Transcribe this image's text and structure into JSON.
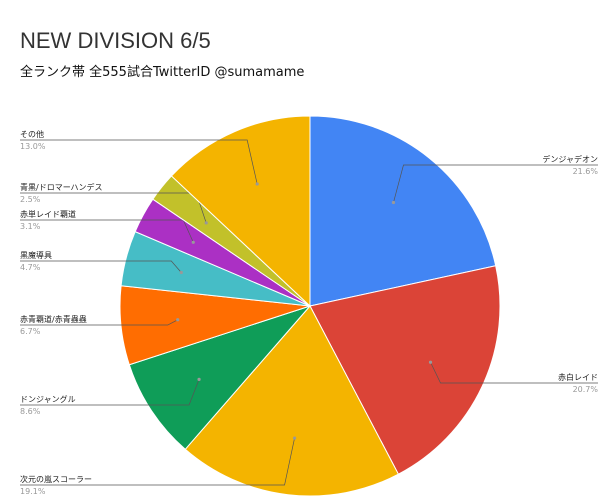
{
  "chart_data": {
    "type": "pie",
    "title": "NEW DIVISION 6/5",
    "subtitle": "全ランク帯 全555試合TwitterID @sumamame",
    "categories": [
      "デンジャデオン",
      "赤白レイド",
      "次元の嵐スコーラー",
      "ドンジャングル",
      "赤青覇道/赤青蟲蟲",
      "黒魔導具",
      "赤単レイド覇道",
      "青黒/ドロマーハンデス",
      "その他"
    ],
    "values": [
      21.6,
      20.7,
      19.1,
      8.6,
      6.7,
      4.7,
      3.1,
      2.5,
      13.0
    ],
    "value_labels": [
      "21.6%",
      "20.7%",
      "19.1%",
      "8.6%",
      "6.7%",
      "4.7%",
      "3.1%",
      "2.5%",
      "13.0%"
    ],
    "colors": [
      "#4285f4",
      "#db4437",
      "#f4b400",
      "#0f9d58",
      "#ff6d01",
      "#46bdc6",
      "#ab30c4",
      "#c2c12a",
      "#f4b400"
    ]
  }
}
